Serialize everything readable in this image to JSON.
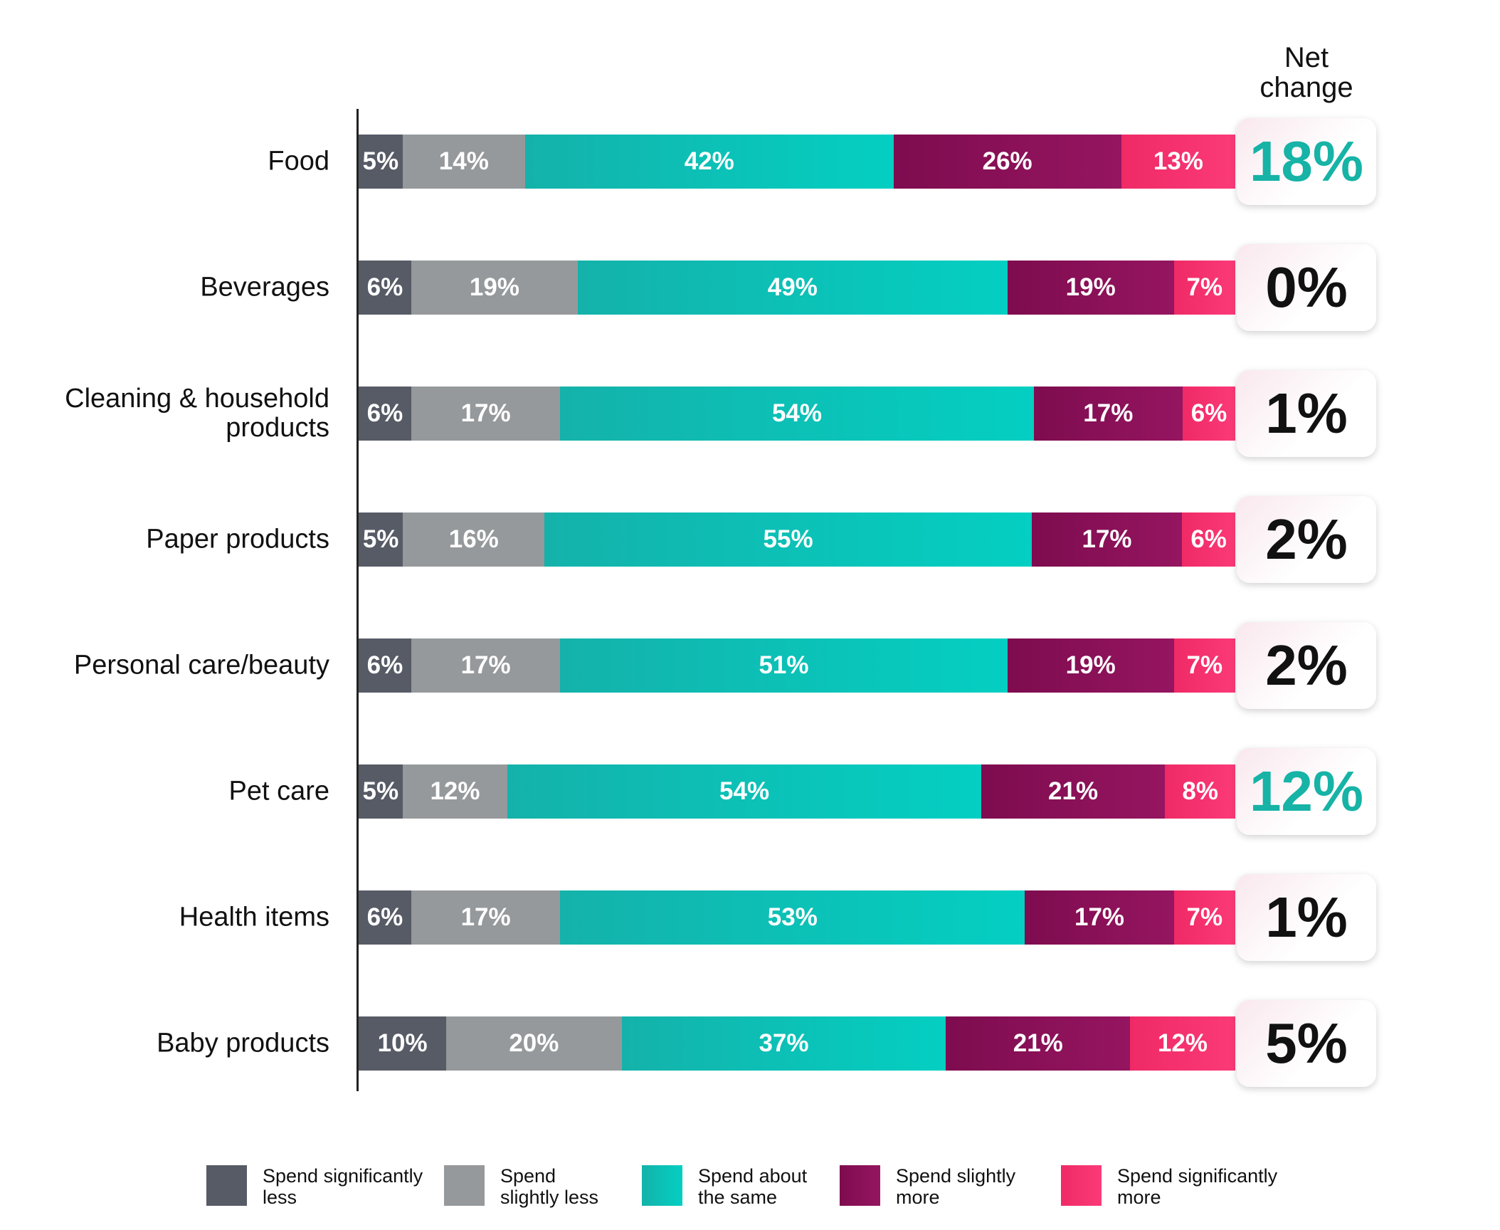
{
  "chart_data": {
    "type": "bar",
    "orientation": "horizontal",
    "stacked": true,
    "net_change_title": "Net change",
    "categories": [
      "Food",
      "Beverages",
      "Cleaning & household products",
      "Paper products",
      "Personal care/beauty",
      "Pet care",
      "Health items",
      "Baby products"
    ],
    "series": [
      {
        "name": "Spend significantly less",
        "color": "#575b66",
        "values": [
          5,
          6,
          6,
          5,
          6,
          5,
          6,
          10
        ]
      },
      {
        "name": "Spend slightly less",
        "color": "#95999c",
        "values": [
          14,
          19,
          17,
          16,
          17,
          12,
          17,
          20
        ]
      },
      {
        "name": "Spend about the same",
        "color": "#0fc2b8",
        "values": [
          42,
          49,
          54,
          55,
          51,
          54,
          53,
          37
        ]
      },
      {
        "name": "Spend slightly more",
        "color": "#8c1057",
        "values": [
          26,
          19,
          17,
          17,
          19,
          21,
          17,
          21
        ]
      },
      {
        "name": "Spend significantly more",
        "color": "#f5306f",
        "values": [
          13,
          7,
          6,
          6,
          7,
          8,
          7,
          12
        ]
      }
    ],
    "value_labels": [
      [
        "5%",
        "14%",
        "42%",
        "26%",
        "13%"
      ],
      [
        "6%",
        "19%",
        "49%",
        "19%",
        "7%"
      ],
      [
        "6%",
        "17%",
        "54%",
        "17%",
        "6%"
      ],
      [
        "5%",
        "16%",
        "55%",
        "17%",
        "6%"
      ],
      [
        "6%",
        "17%",
        "51%",
        "19%",
        "7%"
      ],
      [
        "5%",
        "12%",
        "54%",
        "21%",
        "8%"
      ],
      [
        "6%",
        "17%",
        "53%",
        "17%",
        "7%"
      ],
      [
        "10%",
        "20%",
        "37%",
        "21%",
        "12%"
      ]
    ],
    "net_change": [
      {
        "label": "18%",
        "color": "#16b3a6"
      },
      {
        "label": "0%",
        "color": "#111111"
      },
      {
        "label": "1%",
        "color": "#111111"
      },
      {
        "label": "2%",
        "color": "#111111"
      },
      {
        "label": "2%",
        "color": "#111111"
      },
      {
        "label": "12%",
        "color": "#16b3a6"
      },
      {
        "label": "1%",
        "color": "#111111"
      },
      {
        "label": "5%",
        "color": "#111111"
      }
    ],
    "legend_position": "bottom",
    "grid": false
  }
}
